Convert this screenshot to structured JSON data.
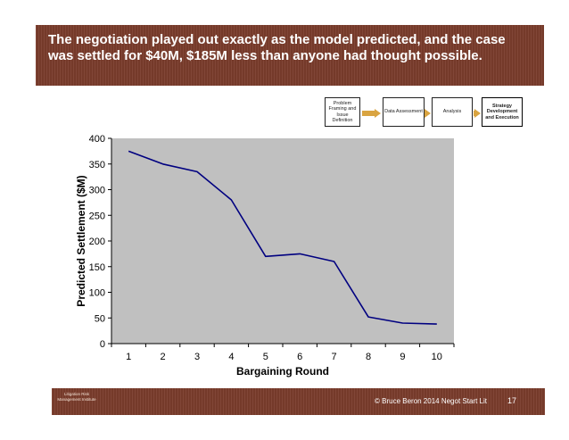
{
  "header": {
    "title": "The negotiation played out exactly as the model predicted, and the case was settled for $40M, $185M less than anyone had thought possible."
  },
  "process": [
    {
      "label": "Problem Framing and Issue Definition",
      "active": false
    },
    {
      "label": "Data Assessment",
      "active": false
    },
    {
      "label": "Analysis",
      "active": false
    },
    {
      "label": "Strategy Development and Execution",
      "active": true
    }
  ],
  "colors": {
    "banner": "#7a3c2c",
    "arrow": "#d9a441",
    "plot_background": "#c0c0c0",
    "series_line": "#000080"
  },
  "chart_data": {
    "type": "line",
    "x": [
      1,
      2,
      3,
      4,
      5,
      6,
      7,
      8,
      9,
      10
    ],
    "series": [
      {
        "values": [
          375,
          350,
          335,
          280,
          170,
          175,
          160,
          52,
          40,
          38
        ]
      }
    ],
    "xlabel": "Bargaining Round",
    "ylabel": "Predicted Settlement ($M)",
    "ylim": [
      0,
      400
    ],
    "yticks": [
      0,
      50,
      100,
      150,
      200,
      250,
      300,
      350,
      400
    ],
    "grid": false
  },
  "footer": {
    "logo_text": "Litigation Risk Management Institute",
    "copyright": "© Bruce Beron 2014 Negot Start Lit",
    "page_number": "17"
  }
}
